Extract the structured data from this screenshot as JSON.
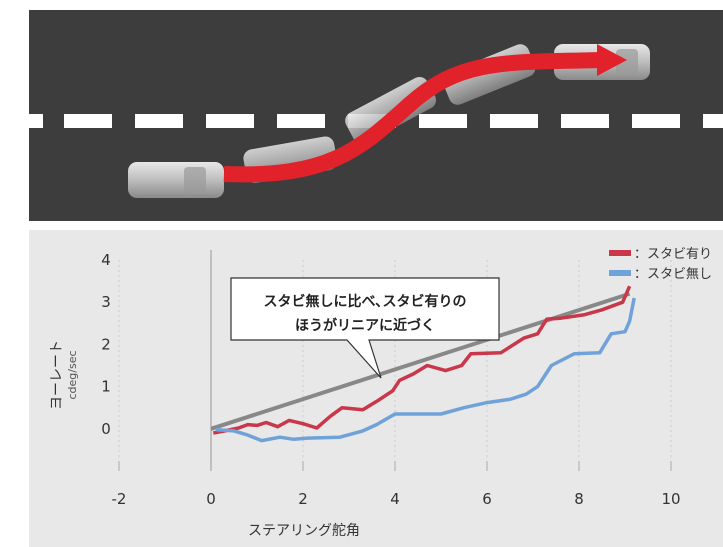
{
  "chart_data": {
    "type": "line",
    "xlabel": "ステアリング舵角",
    "ylabel": "ヨーレート",
    "yunit": "cdeg/sec",
    "xlim": [
      -2,
      10
    ],
    "ylim": [
      -1,
      4
    ],
    "x_ticks": [
      "-2",
      "0",
      "2",
      "4",
      "6",
      "8",
      "10"
    ],
    "y_ticks": [
      "0",
      "1",
      "2",
      "3",
      "4"
    ],
    "grid": "vertical",
    "legend_position": "top-right",
    "annotation": {
      "line1": "スタビ無しに比べ､スタビ有りの",
      "line2": "ほうがリニアに近づく"
    },
    "reference_line": {
      "x": [
        0,
        9.1
      ],
      "y": [
        0,
        3.2
      ]
    },
    "series": [
      {
        "name": "：スタビ有り",
        "color": "#c8374a",
        "x": [
          0.05,
          0.3,
          0.6,
          0.8,
          1.0,
          1.2,
          1.45,
          1.7,
          2.0,
          2.3,
          2.6,
          2.85,
          3.3,
          3.6,
          3.95,
          4.1,
          4.4,
          4.7,
          5.1,
          5.45,
          5.65,
          6.3,
          6.8,
          7.1,
          7.3,
          7.6,
          8.1,
          8.5,
          8.95,
          9.1
        ],
        "y": [
          -0.1,
          -0.05,
          0.02,
          0.1,
          0.08,
          0.15,
          0.05,
          0.2,
          0.12,
          0.02,
          0.3,
          0.5,
          0.45,
          0.65,
          0.9,
          1.15,
          1.3,
          1.5,
          1.38,
          1.5,
          1.78,
          1.8,
          2.15,
          2.25,
          2.6,
          2.62,
          2.7,
          2.82,
          3.0,
          3.38
        ]
      },
      {
        "name": "：スタビ無し",
        "color": "#6fa2d8",
        "x": [
          0.1,
          0.5,
          0.8,
          1.1,
          1.5,
          1.8,
          2.1,
          2.8,
          3.3,
          3.6,
          4.0,
          5.0,
          5.5,
          6.0,
          6.5,
          6.85,
          7.1,
          7.4,
          7.9,
          8.45,
          8.7,
          9.0,
          9.1,
          9.2
        ],
        "y": [
          -0.02,
          -0.05,
          -0.15,
          -0.28,
          -0.2,
          -0.25,
          -0.22,
          -0.2,
          -0.05,
          0.1,
          0.35,
          0.35,
          0.5,
          0.62,
          0.7,
          0.82,
          1.0,
          1.5,
          1.78,
          1.8,
          2.25,
          2.3,
          2.55,
          3.1
        ]
      }
    ]
  },
  "colors": {
    "road": "#3d3d3d",
    "lane_marking": "#ffffff",
    "arrow": "#e1222a",
    "chart_background": "#e8e8e8",
    "reference_line": "#888888",
    "grid": "#aaaaaa"
  },
  "icons": [
    "car-icon",
    "path-arrow-icon"
  ]
}
